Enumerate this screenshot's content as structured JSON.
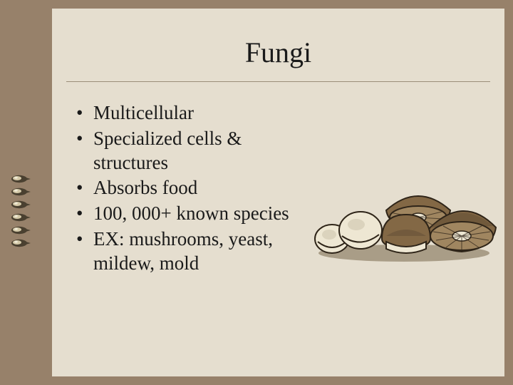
{
  "slide": {
    "title": "Fungi",
    "bullets": [
      "Multicellular",
      "Specialized cells & structures",
      "Absorbs food",
      "100, 000+ known species",
      "EX: mushrooms, yeast, mildew, mold"
    ],
    "background_outer": "#97816a",
    "background_inner": "#e5decf",
    "title_fontsize": 40,
    "bullet_fontsize": 27,
    "text_color": "#1a1a1a",
    "rule_color": "#9a8d78"
  },
  "side_bullet_count": 6,
  "side_bullet_colors": {
    "shell": "#4a4030",
    "rim": "#d4c9a8",
    "highlight": "#f0ead6"
  },
  "mushroom_palette": {
    "outline": "#2e2418",
    "cap_brown": "#836845",
    "cap_dark": "#5d4a32",
    "stem_light": "#eee7d3",
    "stem_shadow": "#cfc6af",
    "gill": "#a08660",
    "ground": "#6e5c40"
  }
}
